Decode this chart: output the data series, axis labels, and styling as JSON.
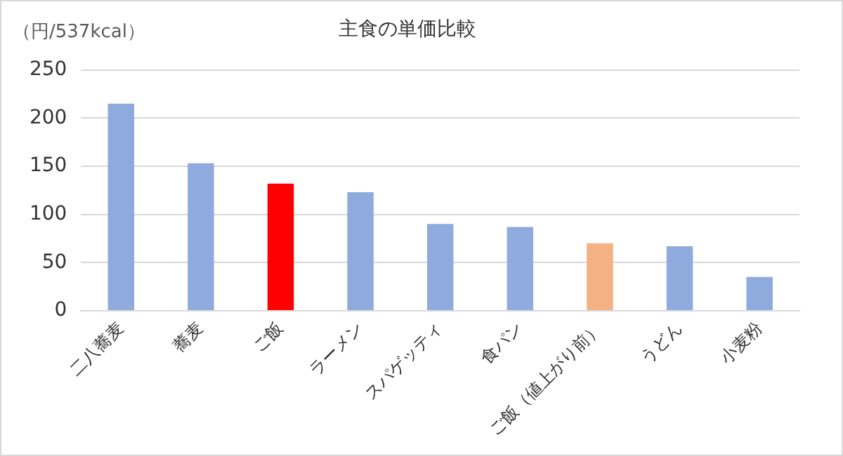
{
  "chart_data": {
    "type": "bar",
    "title": "主食の単価比較",
    "ylabel": "（円/537kcal）",
    "categories": [
      "二八蕎麦",
      "蕎麦",
      "ご飯",
      "ラーメン",
      "スパゲッティ",
      "食パン",
      "ご飯（値上がり前）",
      "うどん",
      "小麦粉"
    ],
    "values": [
      215,
      153,
      132,
      123,
      90,
      87,
      70,
      67,
      35
    ],
    "colors": [
      "#8faadc",
      "#8faadc",
      "#ff0000",
      "#8faadc",
      "#8faadc",
      "#8faadc",
      "#f4b183",
      "#8faadc",
      "#8faadc"
    ],
    "ylim": [
      0,
      250
    ],
    "yticks": [
      0,
      50,
      100,
      150,
      200,
      250
    ],
    "grid": "y",
    "legend": false
  }
}
